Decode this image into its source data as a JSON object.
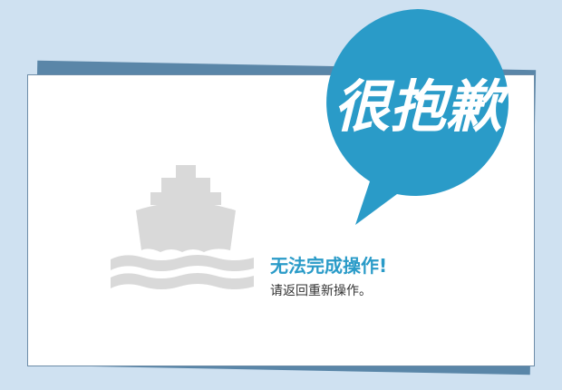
{
  "bubble": {
    "text": "很抱歉"
  },
  "message": {
    "title": "无法完成操作!",
    "subtitle": "请返回重新操作。"
  },
  "colors": {
    "background": "#cfe1f1",
    "card": "#ffffff",
    "card_shadow": "#5a86a8",
    "bubble": "#2a9bc8",
    "title": "#2a9bc8",
    "icon": "#d9d9d9"
  },
  "icons": {
    "illustration": "ship-icon"
  }
}
